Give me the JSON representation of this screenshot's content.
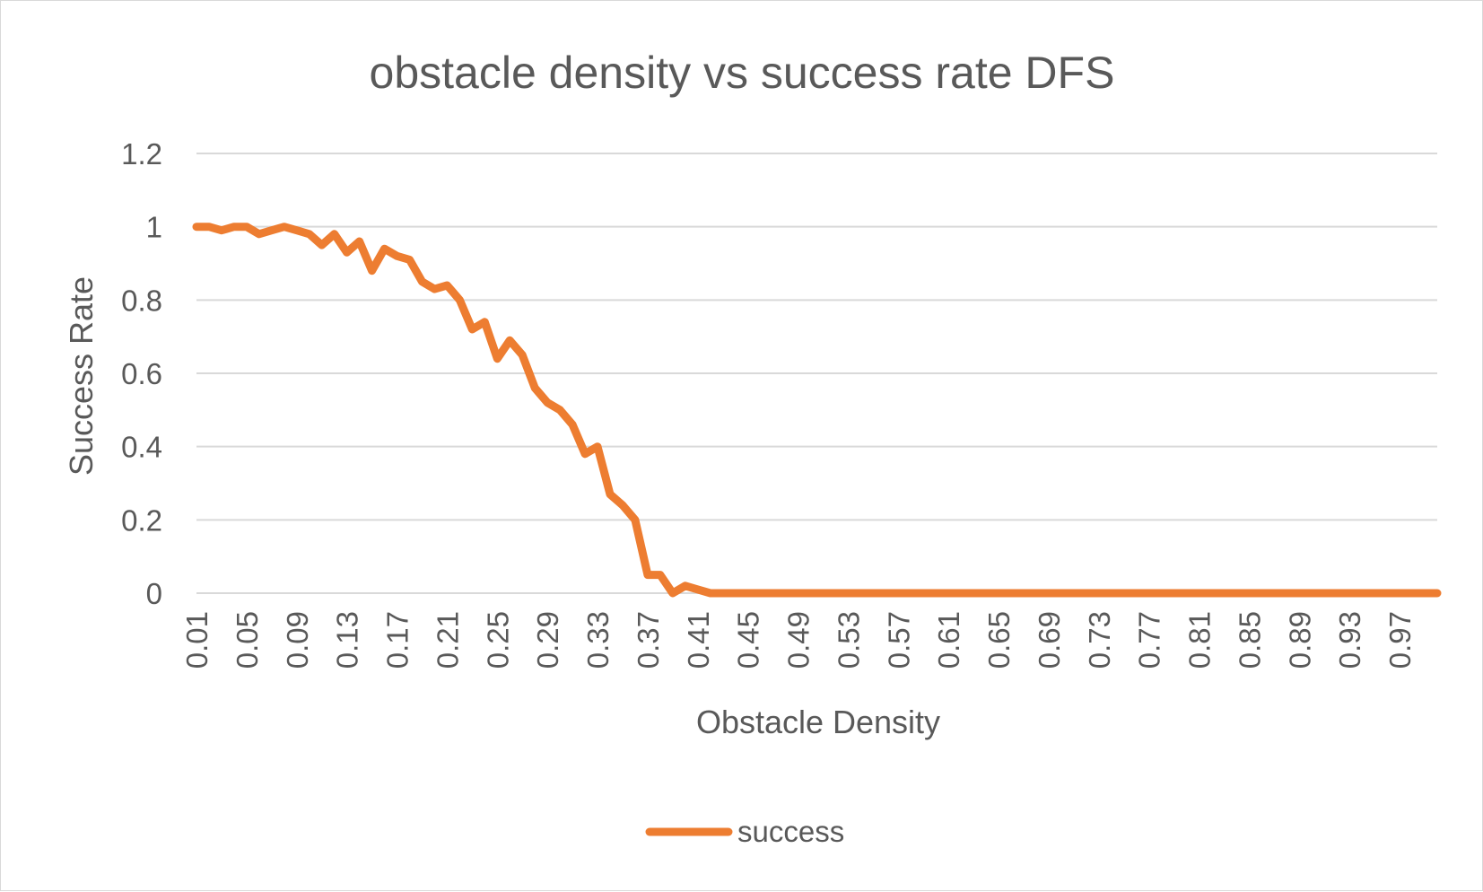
{
  "chart_data": {
    "type": "line",
    "title": "obstacle density vs success rate DFS",
    "xlabel": "Obstacle Density",
    "ylabel": "Success Rate",
    "ylim": [
      0,
      1.2
    ],
    "yticks": [
      "0",
      "0.2",
      "0.4",
      "0.6",
      "0.8",
      "1",
      "1.2"
    ],
    "grid": true,
    "legend_position": "bottom",
    "x_tick_labels": [
      "0.01",
      "0.05",
      "0.09",
      "0.13",
      "0.17",
      "0.21",
      "0.25",
      "0.29",
      "0.33",
      "0.37",
      "0.41",
      "0.45",
      "0.49",
      "0.53",
      "0.57",
      "0.61",
      "0.65",
      "0.69",
      "0.73",
      "0.77",
      "0.81",
      "0.85",
      "0.89",
      "0.93",
      "0.97"
    ],
    "x": [
      0.01,
      0.02,
      0.03,
      0.04,
      0.05,
      0.06,
      0.07,
      0.08,
      0.09,
      0.1,
      0.11,
      0.12,
      0.13,
      0.14,
      0.15,
      0.16,
      0.17,
      0.18,
      0.19,
      0.2,
      0.21,
      0.22,
      0.23,
      0.24,
      0.25,
      0.26,
      0.27,
      0.28,
      0.29,
      0.3,
      0.31,
      0.32,
      0.33,
      0.34,
      0.35,
      0.36,
      0.37,
      0.38,
      0.39,
      0.4,
      0.41,
      0.42,
      0.43,
      0.44,
      0.45,
      0.46,
      0.47,
      0.48,
      0.49,
      0.5,
      0.51,
      0.52,
      0.53,
      0.54,
      0.55,
      0.56,
      0.57,
      0.58,
      0.59,
      0.6,
      0.61,
      0.62,
      0.63,
      0.64,
      0.65,
      0.66,
      0.67,
      0.68,
      0.69,
      0.7,
      0.71,
      0.72,
      0.73,
      0.74,
      0.75,
      0.76,
      0.77,
      0.78,
      0.79,
      0.8,
      0.81,
      0.82,
      0.83,
      0.84,
      0.85,
      0.86,
      0.87,
      0.88,
      0.89,
      0.9,
      0.91,
      0.92,
      0.93,
      0.94,
      0.95,
      0.96,
      0.97,
      0.98,
      0.99,
      1.0
    ],
    "series": [
      {
        "name": "success",
        "color": "#ed7d31",
        "values": [
          1.0,
          1.0,
          0.99,
          1.0,
          1.0,
          0.98,
          0.99,
          1.0,
          0.99,
          0.98,
          0.95,
          0.98,
          0.93,
          0.96,
          0.88,
          0.94,
          0.92,
          0.91,
          0.85,
          0.83,
          0.84,
          0.8,
          0.72,
          0.74,
          0.64,
          0.69,
          0.65,
          0.56,
          0.52,
          0.5,
          0.46,
          0.38,
          0.4,
          0.27,
          0.24,
          0.2,
          0.05,
          0.05,
          0.0,
          0.02,
          0.01,
          0.0,
          0.0,
          0.0,
          0.0,
          0.0,
          0.0,
          0.0,
          0.0,
          0.0,
          0.0,
          0.0,
          0.0,
          0.0,
          0.0,
          0.0,
          0.0,
          0.0,
          0.0,
          0.0,
          0.0,
          0.0,
          0.0,
          0.0,
          0.0,
          0.0,
          0.0,
          0.0,
          0.0,
          0.0,
          0.0,
          0.0,
          0.0,
          0.0,
          0.0,
          0.0,
          0.0,
          0.0,
          0.0,
          0.0,
          0.0,
          0.0,
          0.0,
          0.0,
          0.0,
          0.0,
          0.0,
          0.0,
          0.0,
          0.0,
          0.0,
          0.0,
          0.0,
          0.0,
          0.0,
          0.0,
          0.0,
          0.0,
          0.0,
          0.0
        ]
      }
    ]
  }
}
